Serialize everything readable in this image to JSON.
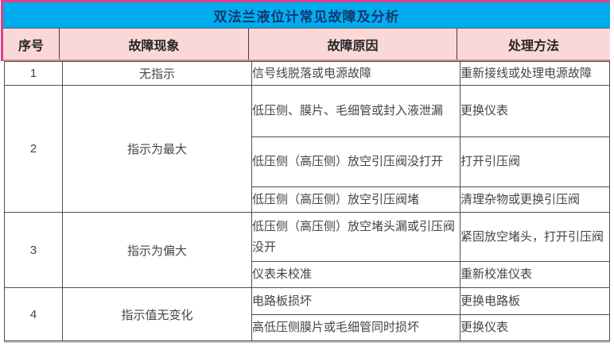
{
  "page": {
    "title": "双法兰液位计常见故障及分析"
  },
  "table": {
    "columns": [
      "序号",
      "故障现象",
      "故障原因",
      "处理方法"
    ],
    "rows": [
      {
        "no": "1",
        "phenomenon": "无指示",
        "items": [
          {
            "cause": "信号线脱落或电源故障",
            "solution": "重新接线或处理电源故障"
          }
        ]
      },
      {
        "no": "2",
        "phenomenon": "指示为最大",
        "items": [
          {
            "cause": "低压侧、膜片、毛细管或封入液泄漏",
            "solution": "更换仪表"
          },
          {
            "cause": "低压侧（高压侧）放空引压阀没打开",
            "solution": "打开引压阀"
          },
          {
            "cause": "低压侧（高压侧）放空引压阀堵",
            "solution": "清理杂物或更换引压阀"
          }
        ]
      },
      {
        "no": "3",
        "phenomenon": "指示为偏大",
        "items": [
          {
            "cause": "低压侧（高压侧）放空堵头漏或引压阀没开",
            "solution": "紧固放空堵头，打开引压阀"
          },
          {
            "cause": "仪表未校准",
            "solution": "重新校准仪表"
          }
        ]
      },
      {
        "no": "4",
        "phenomenon": "指示值无变化",
        "items": [
          {
            "cause": "电路板损坏",
            "solution": "更换电路板"
          },
          {
            "cause": "高低压侧膜片或毛细管同时损坏",
            "solution": "更换仪表"
          }
        ]
      }
    ]
  },
  "colors": {
    "title_bg": "#00ADEF",
    "title_text": "#15386B",
    "header_bg": "#FBD8D8",
    "header_text": "#262626",
    "body_text": "#454545",
    "grid_line": "#4E4E4E",
    "frame_accent": "#DF3F88",
    "header_underline": "#D08C8C",
    "bottom_edge": "#C6C6C6"
  }
}
